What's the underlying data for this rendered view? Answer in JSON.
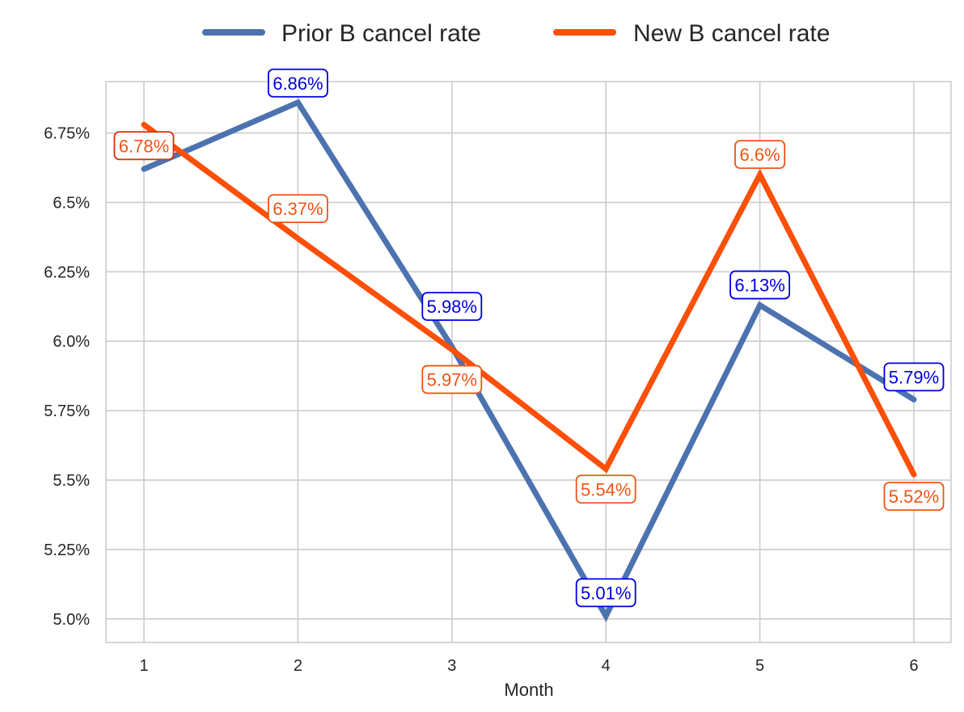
{
  "chart_data": {
    "type": "line",
    "x": [
      1,
      2,
      3,
      4,
      5,
      6
    ],
    "xlabel": "Month",
    "ylabel": "",
    "ylim": [
      4.915,
      6.935
    ],
    "yticks": [
      5.0,
      5.25,
      5.5,
      5.75,
      6.0,
      6.25,
      6.5,
      6.75
    ],
    "ytick_labels": [
      "5.0%",
      "5.25%",
      "5.5%",
      "5.75%",
      "6.0%",
      "6.25%",
      "6.5%",
      "6.75%"
    ],
    "grid": true,
    "legend_position": "top-center",
    "series": [
      {
        "name": "Prior B cancel rate",
        "values": [
          6.62,
          6.86,
          5.98,
          5.01,
          6.13,
          5.79
        ],
        "labels": [
          "6.62%",
          "6.86%",
          "5.98%",
          "5.01%",
          "6.13%",
          "5.79%"
        ],
        "color": "#4c72b0",
        "label_color": "#0000dd"
      },
      {
        "name": "New B cancel rate",
        "values": [
          6.78,
          6.37,
          5.97,
          5.54,
          6.6,
          5.52
        ],
        "labels": [
          "6.78%",
          "6.37%",
          "5.97%",
          "5.54%",
          "6.6%",
          "5.52%"
        ],
        "color": "#fc4f08",
        "label_color": "#ee5515"
      }
    ]
  }
}
